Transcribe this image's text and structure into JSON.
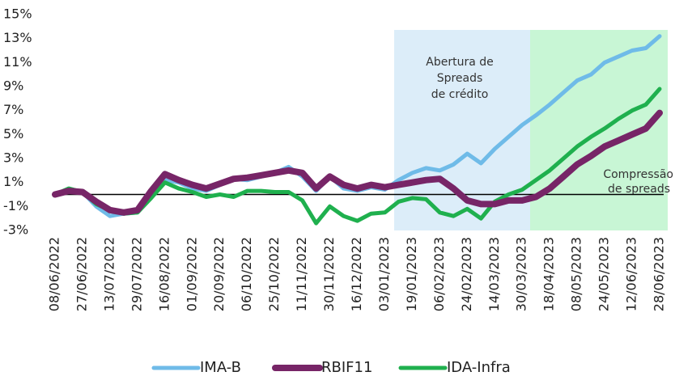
{
  "chart_data": {
    "type": "line",
    "categories": [
      "08/06/2022",
      null,
      "27/06/2022",
      null,
      "13/07/2022",
      null,
      "29/07/2022",
      null,
      "16/08/2022",
      null,
      "01/09/2022",
      null,
      "20/09/2022",
      null,
      "06/10/2022",
      null,
      "25/10/2022",
      null,
      "11/11/2022",
      null,
      "30/11/2022",
      null,
      "16/12/2022",
      null,
      "03/01/2023",
      null,
      "19/01/2023",
      null,
      "06/02/2023",
      null,
      "24/02/2023",
      null,
      "14/03/2023",
      null,
      "30/03/2023",
      null,
      "18/04/2023",
      null,
      "08/05/2023",
      null,
      "24/05/2023",
      null,
      "12/06/2023",
      null,
      "28/06/2023"
    ],
    "series": [
      {
        "name": "IMA-B",
        "color": "#6fbbe8",
        "values": [
          0,
          0.3,
          0.2,
          -1,
          -1.8,
          -1.6,
          -1.5,
          0,
          1.2,
          1,
          0.5,
          0.3,
          0.8,
          1.3,
          1.2,
          1.5,
          1.8,
          2.3,
          1.5,
          0.3,
          1.5,
          0.5,
          0.3,
          0.6,
          0.4,
          1.2,
          1.8,
          2.2,
          2,
          2.5,
          3.4,
          2.6,
          3.8,
          4.8,
          5.8,
          6.6,
          7.5,
          8.5,
          9.5,
          10,
          11,
          11.5,
          12,
          12.2,
          13.2
        ]
      },
      {
        "name": "RBIF11",
        "color": "#772567",
        "values": [
          0,
          0.3,
          0.2,
          -0.6,
          -1.3,
          -1.5,
          -1.3,
          0.3,
          1.7,
          1.2,
          0.8,
          0.5,
          0.9,
          1.3,
          1.4,
          1.6,
          1.8,
          2,
          1.8,
          0.5,
          1.5,
          0.8,
          0.5,
          0.8,
          0.6,
          0.8,
          1,
          1.2,
          1.3,
          0.5,
          -0.5,
          -0.8,
          -0.8,
          -0.5,
          -0.5,
          -0.2,
          0.5,
          1.5,
          2.5,
          3.2,
          4,
          4.5,
          5,
          5.5,
          6.8
        ]
      },
      {
        "name": "IDA-Infra",
        "color": "#1fb04e",
        "values": [
          0,
          0.5,
          0.2,
          -0.8,
          -1.3,
          -1.6,
          -1.5,
          -0.3,
          1,
          0.5,
          0.2,
          -0.2,
          0,
          -0.2,
          0.3,
          0.3,
          0.2,
          0.2,
          -0.5,
          -2.4,
          -1,
          -1.8,
          -2.2,
          -1.6,
          -1.5,
          -0.6,
          -0.3,
          -0.4,
          -1.5,
          -1.8,
          -1.2,
          -2,
          -0.6,
          0,
          0.4,
          1.2,
          2,
          3,
          4,
          4.8,
          5.5,
          6.3,
          7,
          7.5,
          8.8
        ]
      }
    ],
    "ylim": [
      -3,
      15
    ],
    "yticks": [
      {
        "value": -3,
        "label": "-3%"
      },
      {
        "value": -1,
        "label": "-1%"
      },
      {
        "value": 1,
        "label": "1%"
      },
      {
        "value": 3,
        "label": "3%"
      },
      {
        "value": 5,
        "label": "5%"
      },
      {
        "value": 7,
        "label": "7%"
      },
      {
        "value": 9,
        "label": "9%"
      },
      {
        "value": 11,
        "label": "11%"
      },
      {
        "value": 13,
        "label": "13%"
      },
      {
        "value": 15,
        "label": "15%"
      }
    ],
    "grid": false,
    "legend": "bottom",
    "annotations": [
      {
        "lines": [
          "Abertura de",
          "Spreads",
          "de crédito"
        ]
      },
      {
        "lines": [
          "Compressão",
          "de spreads"
        ]
      }
    ]
  }
}
